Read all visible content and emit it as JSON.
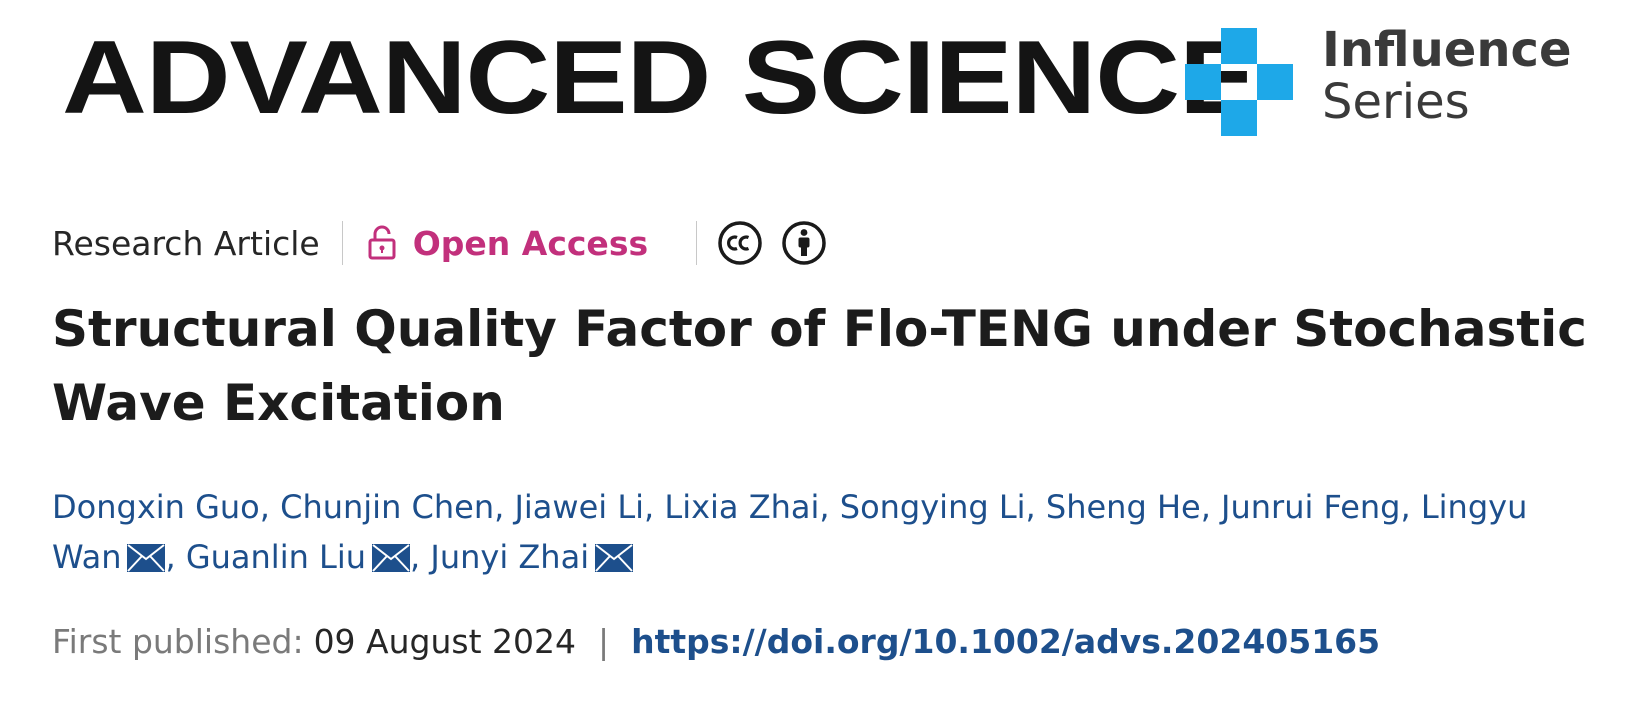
{
  "header": {
    "journal": "ADVANCED SCIENCE",
    "series_line1": "Influence",
    "series_line2": "Series",
    "series_color": "#1ea8e8"
  },
  "meta": {
    "article_type": "Research Article",
    "open_access_label": "Open Access",
    "open_access_color": "#c2307c",
    "open_access_icon": "lock-open-icon",
    "license_icons": [
      "cc-icon",
      "by-attribution-icon"
    ]
  },
  "title": "Structural Quality Factor of Flo-TENG under Stochastic Wave Excitation",
  "authors": [
    {
      "name": "Dongxin Guo",
      "email": false
    },
    {
      "name": "Chunjin Chen",
      "email": false
    },
    {
      "name": "Jiawei Li",
      "email": false
    },
    {
      "name": "Lixia Zhai",
      "email": false
    },
    {
      "name": "Songying Li",
      "email": false
    },
    {
      "name": "Sheng He",
      "email": false
    },
    {
      "name": "Junrui Feng",
      "email": false
    },
    {
      "name": "Lingyu Wan",
      "email": true
    },
    {
      "name": "Guanlin Liu",
      "email": true
    },
    {
      "name": "Junyi Zhai",
      "email": true
    }
  ],
  "publication": {
    "first_published_label": "First published:",
    "date": "09 August 2024",
    "separator": "|",
    "doi": "https://doi.org/10.1002/advs.202405165",
    "link_color": "#1d4f8c"
  }
}
